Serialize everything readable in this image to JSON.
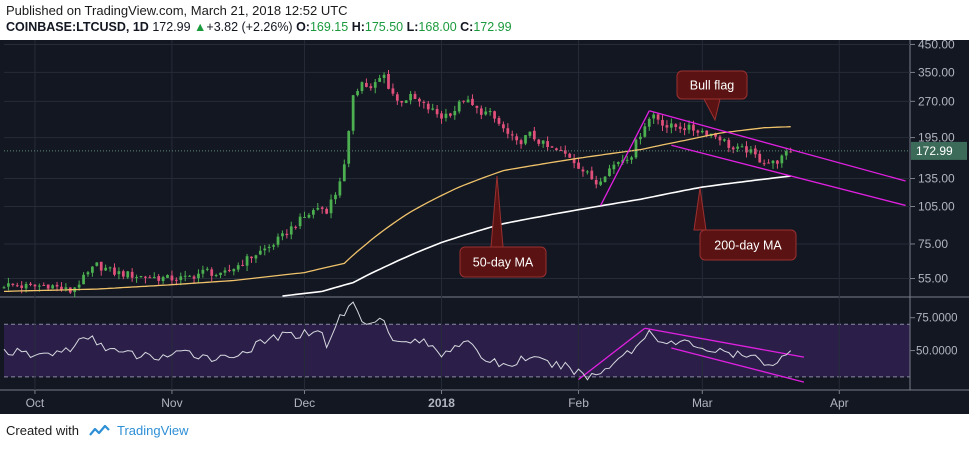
{
  "header": {
    "published": "Published on TradingView.com, March 21, 2018 12:52 UTC",
    "symbol": "COINBASE:LTCUSD, 1D",
    "last": "172.99",
    "change": "+3.82 (+2.26%)",
    "o_label": "O:",
    "o": "169.15",
    "h_label": "H:",
    "h": "175.50",
    "l_label": "L:",
    "l": "168.00",
    "c_label": "C:",
    "c": "172.99"
  },
  "footer": {
    "created_with": "Created with",
    "brand": "TradingView"
  },
  "colors": {
    "background": "#131722",
    "rsi_band": "#2b1f4a",
    "candle_up": "#4caf50",
    "candle_down": "#e0507a",
    "ma50": "#f0c36b",
    "ma200": "#ffffff",
    "trendline": "#e020e0",
    "callout": "#5a1212",
    "last_price_badge": "#3d6b5a"
  },
  "chart_data": {
    "type": "candlestick",
    "series_note": "LTC/USD daily candles, Sep 24 2017 – Mar 21 2018 (approximate)",
    "x_tick_labels": [
      "Oct",
      "Nov",
      "Dec",
      "2018",
      "Feb",
      "Mar",
      "Apr"
    ],
    "x_tick_dates": [
      "2017-10-01",
      "2017-11-01",
      "2017-12-01",
      "2018-01-01",
      "2018-02-01",
      "2018-03-01",
      "2018-04-01"
    ],
    "x_range": [
      "2017-09-24",
      "2018-04-17"
    ],
    "price_axis": {
      "scale": "log",
      "tick_labels": [
        "450.00",
        "350.00",
        "270.00",
        "195.00",
        "135.00",
        "105.00",
        "75.00",
        "55.00"
      ],
      "ylim": [
        47,
        460
      ]
    },
    "last_price_label": "172.99",
    "close_anchors": [
      [
        "2017-09-24",
        52
      ],
      [
        "2017-09-30",
        51
      ],
      [
        "2017-10-04",
        52
      ],
      [
        "2017-10-09",
        49
      ],
      [
        "2017-10-12",
        55
      ],
      [
        "2017-10-15",
        62
      ],
      [
        "2017-10-19",
        58
      ],
      [
        "2017-10-25",
        56
      ],
      [
        "2017-10-31",
        55
      ],
      [
        "2017-11-04",
        55
      ],
      [
        "2017-11-09",
        59
      ],
      [
        "2017-11-12",
        56
      ],
      [
        "2017-11-16",
        62
      ],
      [
        "2017-11-19",
        67
      ],
      [
        "2017-11-23",
        73
      ],
      [
        "2017-11-26",
        80
      ],
      [
        "2017-11-29",
        90
      ],
      [
        "2017-12-02",
        98
      ],
      [
        "2017-12-04",
        104
      ],
      [
        "2017-12-06",
        102
      ],
      [
        "2017-12-08",
        118
      ],
      [
        "2017-12-10",
        150
      ],
      [
        "2017-12-11",
        200
      ],
      [
        "2017-12-12",
        290
      ],
      [
        "2017-12-14",
        320
      ],
      [
        "2017-12-16",
        300
      ],
      [
        "2017-12-18",
        330
      ],
      [
        "2017-12-19",
        340
      ],
      [
        "2017-12-20",
        310
      ],
      [
        "2017-12-22",
        270
      ],
      [
        "2017-12-25",
        280
      ],
      [
        "2017-12-28",
        260
      ],
      [
        "2018-01-01",
        235
      ],
      [
        "2018-01-04",
        250
      ],
      [
        "2018-01-06",
        275
      ],
      [
        "2018-01-09",
        250
      ],
      [
        "2018-01-12",
        240
      ],
      [
        "2018-01-16",
        200
      ],
      [
        "2018-01-18",
        185
      ],
      [
        "2018-01-21",
        200
      ],
      [
        "2018-01-25",
        178
      ],
      [
        "2018-01-30",
        165
      ],
      [
        "2018-02-02",
        145
      ],
      [
        "2018-02-05",
        130
      ],
      [
        "2018-02-07",
        142
      ],
      [
        "2018-02-10",
        158
      ],
      [
        "2018-02-13",
        168
      ],
      [
        "2018-02-16",
        220
      ],
      [
        "2018-02-18",
        240
      ],
      [
        "2018-02-21",
        215
      ],
      [
        "2018-02-24",
        215
      ],
      [
        "2018-02-27",
        210
      ],
      [
        "2018-03-02",
        205
      ],
      [
        "2018-03-05",
        195
      ],
      [
        "2018-03-08",
        175
      ],
      [
        "2018-03-11",
        175
      ],
      [
        "2018-03-14",
        160
      ],
      [
        "2018-03-17",
        155
      ],
      [
        "2018-03-19",
        162
      ],
      [
        "2018-03-21",
        173
      ]
    ],
    "ma50_label": "50-day MA",
    "ma200_label": "200-day MA",
    "ma50_anchors": [
      [
        "2017-09-24",
        49
      ],
      [
        "2017-10-15",
        50
      ],
      [
        "2017-11-01",
        52
      ],
      [
        "2017-11-15",
        54
      ],
      [
        "2017-12-01",
        58
      ],
      [
        "2017-12-10",
        63
      ],
      [
        "2017-12-15",
        75
      ],
      [
        "2017-12-25",
        100
      ],
      [
        "2018-01-05",
        125
      ],
      [
        "2018-01-15",
        145
      ],
      [
        "2018-01-25",
        155
      ],
      [
        "2018-02-01",
        162
      ],
      [
        "2018-02-15",
        175
      ],
      [
        "2018-02-25",
        190
      ],
      [
        "2018-03-05",
        203
      ],
      [
        "2018-03-15",
        213
      ],
      [
        "2018-03-21",
        215
      ]
    ],
    "ma200_anchors": [
      [
        "2017-11-26",
        47
      ],
      [
        "2017-12-05",
        49
      ],
      [
        "2017-12-12",
        53
      ],
      [
        "2017-12-20",
        62
      ],
      [
        "2018-01-01",
        76
      ],
      [
        "2018-01-15",
        90
      ],
      [
        "2018-02-01",
        102
      ],
      [
        "2018-02-15",
        112
      ],
      [
        "2018-03-01",
        125
      ],
      [
        "2018-03-10",
        131
      ],
      [
        "2018-03-21",
        138
      ]
    ],
    "annotations": [
      {
        "text": "Bull flag",
        "date": "2018-02-24",
        "price": 225
      },
      {
        "text": "50-day MA",
        "date": "2018-01-20",
        "price": 148
      },
      {
        "text": "200-day MA",
        "date": "2018-02-26",
        "price": 115
      }
    ],
    "trendlines": [
      {
        "pane": "price",
        "from": [
          "2018-02-06",
          106
        ],
        "to": [
          "2018-02-17",
          248
        ]
      },
      {
        "pane": "price",
        "from": [
          "2018-02-17",
          248
        ],
        "to": [
          "2018-04-16",
          132
        ]
      },
      {
        "pane": "price",
        "from": [
          "2018-02-22",
          182
        ],
        "to": [
          "2018-04-16",
          106
        ]
      },
      {
        "pane": "rsi",
        "from": [
          "2018-02-01",
          28
        ],
        "to": [
          "2018-02-16",
          67
        ]
      },
      {
        "pane": "rsi",
        "from": [
          "2018-02-16",
          67
        ],
        "to": [
          "2018-03-24",
          45
        ]
      },
      {
        "pane": "rsi",
        "from": [
          "2018-02-22",
          52
        ],
        "to": [
          "2018-03-24",
          26
        ]
      }
    ],
    "rsi": {
      "tick_labels": [
        "75.0000",
        "50.0000"
      ],
      "ylim": [
        20,
        90
      ],
      "band": [
        30,
        70
      ],
      "anchors": [
        [
          "2017-09-24",
          50
        ],
        [
          "2017-10-01",
          46
        ],
        [
          "2017-10-08",
          50
        ],
        [
          "2017-10-13",
          60
        ],
        [
          "2017-10-20",
          48
        ],
        [
          "2017-10-28",
          45
        ],
        [
          "2017-11-05",
          48
        ],
        [
          "2017-11-12",
          44
        ],
        [
          "2017-11-18",
          50
        ],
        [
          "2017-11-24",
          60
        ],
        [
          "2017-12-01",
          63
        ],
        [
          "2017-12-04",
          67
        ],
        [
          "2017-12-06",
          55
        ],
        [
          "2017-12-09",
          75
        ],
        [
          "2017-12-12",
          86
        ],
        [
          "2017-12-15",
          68
        ],
        [
          "2017-12-18",
          78
        ],
        [
          "2017-12-22",
          55
        ],
        [
          "2017-12-27",
          58
        ],
        [
          "2018-01-01",
          48
        ],
        [
          "2018-01-06",
          58
        ],
        [
          "2018-01-10",
          45
        ],
        [
          "2018-01-16",
          38
        ],
        [
          "2018-01-20",
          45
        ],
        [
          "2018-01-25",
          40
        ],
        [
          "2018-01-30",
          37
        ],
        [
          "2018-02-03",
          30
        ],
        [
          "2018-02-06",
          33
        ],
        [
          "2018-02-10",
          45
        ],
        [
          "2018-02-14",
          52
        ],
        [
          "2018-02-17",
          65
        ],
        [
          "2018-02-21",
          55
        ],
        [
          "2018-02-26",
          56
        ],
        [
          "2018-03-03",
          50
        ],
        [
          "2018-03-08",
          47
        ],
        [
          "2018-03-13",
          44
        ],
        [
          "2018-03-17",
          40
        ],
        [
          "2018-03-21",
          48
        ]
      ]
    }
  }
}
